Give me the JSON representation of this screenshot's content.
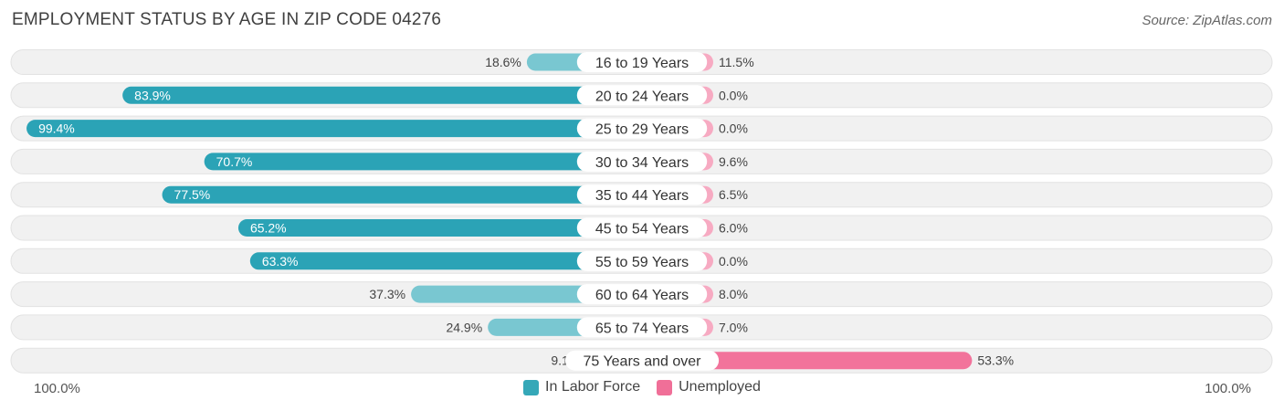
{
  "header": {
    "title": "EMPLOYMENT STATUS BY AGE IN ZIP CODE 04276",
    "source": "Source: ZipAtlas.com"
  },
  "axis": {
    "left_label": "100.0%",
    "right_label": "100.0%"
  },
  "legend": [
    {
      "name": "In Labor Force",
      "color": "#35a8b8"
    },
    {
      "name": "Unemployed",
      "color": "#f06f98"
    }
  ],
  "colors": {
    "labor_dark": "#2ba3b6",
    "labor_light": "#79c7d1",
    "unemp_dark": "#f2739b",
    "unemp_light": "#f7aac2",
    "track": "#f1f1f1",
    "track_border": "#e2e2e2"
  },
  "chart_data": {
    "type": "bar",
    "title": "EMPLOYMENT STATUS BY AGE IN ZIP CODE 04276",
    "orientation": "diverging-horizontal",
    "categories": [
      "16 to 19 Years",
      "20 to 24 Years",
      "25 to 29 Years",
      "30 to 34 Years",
      "35 to 44 Years",
      "45 to 54 Years",
      "55 to 59 Years",
      "60 to 64 Years",
      "65 to 74 Years",
      "75 Years and over"
    ],
    "series": [
      {
        "name": "In Labor Force",
        "values": [
          18.6,
          83.9,
          99.4,
          70.7,
          77.5,
          65.2,
          63.3,
          37.3,
          24.9,
          9.1
        ]
      },
      {
        "name": "Unemployed",
        "values": [
          11.5,
          0.0,
          0.0,
          9.6,
          6.5,
          6.0,
          0.0,
          8.0,
          7.0,
          53.3
        ]
      }
    ],
    "xlim": [
      0,
      100
    ],
    "xlabel_left": "100.0%",
    "xlabel_right": "100.0%",
    "legend_position": "bottom-center"
  }
}
